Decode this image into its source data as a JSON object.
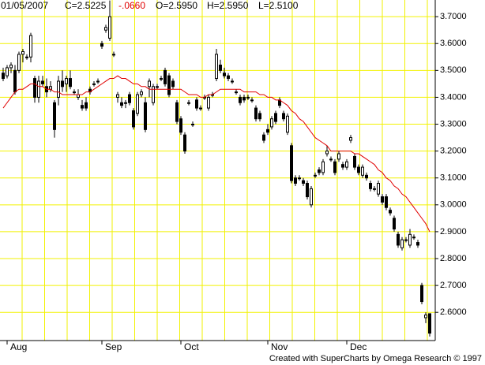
{
  "chart_data": {
    "type": "candlestick",
    "header": {
      "date": "01/05/2007",
      "close": "C=2.5225",
      "change": "-.0660",
      "open": "O=2.5950",
      "high": "H=2.5950",
      "low": "L=2.5100"
    },
    "footer": "Created with SuperCharts by Omega Research © 1997",
    "categories": [
      null,
      "Aug",
      null,
      null,
      null,
      null,
      null,
      null,
      null,
      null,
      null,
      null,
      null,
      null,
      null,
      null,
      null,
      null,
      null,
      null,
      null,
      null,
      null,
      null,
      null,
      "Sep",
      null,
      null,
      null,
      null,
      null,
      null,
      null,
      null,
      null,
      null,
      null,
      null,
      null,
      null,
      null,
      null,
      null,
      null,
      null,
      "Oct",
      null,
      null,
      null,
      null,
      null,
      null,
      null,
      null,
      null,
      null,
      null,
      null,
      null,
      null,
      null,
      null,
      null,
      null,
      null,
      null,
      null,
      "Nov",
      null,
      null,
      null,
      null,
      null,
      null,
      null,
      null,
      null,
      null,
      null,
      null,
      null,
      null,
      null,
      null,
      null,
      null,
      null,
      "Dec",
      null,
      null,
      null,
      null,
      null,
      null,
      null,
      null,
      null,
      null,
      null,
      null,
      null,
      null,
      null,
      null,
      null,
      null,
      null,
      null,
      null
    ],
    "open": [
      3.49,
      3.48,
      3.51,
      3.5,
      3.5,
      3.56,
      3.55,
      3.55,
      3.47,
      3.4,
      3.46,
      3.44,
      3.43,
      3.38,
      3.4,
      3.46,
      3.45,
      3.47,
      3.42,
      3.4,
      3.37,
      3.38,
      3.43,
      3.45,
      3.46,
      3.6,
      3.65,
      3.62,
      3.56,
      3.4,
      3.38,
      3.38,
      3.41,
      3.35,
      3.34,
      3.41,
      3.38,
      3.44,
      3.38,
      3.44,
      3.47,
      3.5,
      3.48,
      3.46,
      3.38,
      3.32,
      3.26,
      3.38,
      3.3,
      3.39,
      3.36,
      3.4,
      3.36,
      3.41,
      3.47,
      3.52,
      3.49,
      3.48,
      3.46,
      3.42,
      3.4,
      3.4,
      3.4,
      3.39,
      3.36,
      3.34,
      3.26,
      3.28,
      3.29,
      3.34,
      3.39,
      3.34,
      3.27,
      3.22,
      3.1,
      3.1,
      3.09,
      3.08,
      3.0,
      3.11,
      3.13,
      3.12,
      3.19,
      3.17,
      3.16,
      3.17,
      3.15,
      3.14,
      3.24,
      3.18,
      3.14,
      3.11,
      3.11,
      3.08,
      3.06,
      3.04,
      3.03,
      3.03,
      2.98,
      2.95,
      2.89,
      2.84,
      2.87,
      2.85,
      2.88,
      2.86,
      2.7,
      2.58,
      2.595
    ],
    "high": [
      3.51,
      3.52,
      3.53,
      3.52,
      3.57,
      3.58,
      3.56,
      3.64,
      3.48,
      3.48,
      3.48,
      3.47,
      3.46,
      3.39,
      3.48,
      3.5,
      3.48,
      3.5,
      3.43,
      3.43,
      3.39,
      3.4,
      3.44,
      3.46,
      3.47,
      3.61,
      3.67,
      3.76,
      3.57,
      3.42,
      3.4,
      3.39,
      3.42,
      3.36,
      3.42,
      3.43,
      3.4,
      3.47,
      3.45,
      3.45,
      3.48,
      3.51,
      3.49,
      3.47,
      3.39,
      3.33,
      3.27,
      3.39,
      3.31,
      3.4,
      3.37,
      3.41,
      3.41,
      3.42,
      3.58,
      3.54,
      3.51,
      3.49,
      3.47,
      3.43,
      3.41,
      3.41,
      3.41,
      3.4,
      3.37,
      3.35,
      3.27,
      3.3,
      3.33,
      3.35,
      3.4,
      3.35,
      3.34,
      3.23,
      3.11,
      3.11,
      3.1,
      3.09,
      3.07,
      3.12,
      3.14,
      3.17,
      3.22,
      3.18,
      3.17,
      3.2,
      3.16,
      3.17,
      3.26,
      3.19,
      3.15,
      3.15,
      3.12,
      3.09,
      3.07,
      3.09,
      3.04,
      3.04,
      2.99,
      2.96,
      2.9,
      2.88,
      2.88,
      2.91,
      2.89,
      2.87,
      2.71,
      2.6,
      2.595
    ],
    "low": [
      3.46,
      3.47,
      3.49,
      3.41,
      3.49,
      3.53,
      3.54,
      3.53,
      3.38,
      3.38,
      3.44,
      3.4,
      3.42,
      3.25,
      3.37,
      3.42,
      3.42,
      3.43,
      3.41,
      3.39,
      3.35,
      3.35,
      3.41,
      3.44,
      3.45,
      3.58,
      3.64,
      3.61,
      3.55,
      3.38,
      3.36,
      3.36,
      3.37,
      3.28,
      3.33,
      3.4,
      3.27,
      3.4,
      3.37,
      3.43,
      3.46,
      3.44,
      3.4,
      3.43,
      3.3,
      3.26,
      3.19,
      3.37,
      3.29,
      3.35,
      3.35,
      3.39,
      3.35,
      3.4,
      3.46,
      3.49,
      3.47,
      3.46,
      3.45,
      3.41,
      3.37,
      3.38,
      3.39,
      3.38,
      3.31,
      3.31,
      3.23,
      3.26,
      3.28,
      3.3,
      3.36,
      3.31,
      3.26,
      3.08,
      3.07,
      3.09,
      3.07,
      3.02,
      2.99,
      3.1,
      3.11,
      3.11,
      3.18,
      3.16,
      3.11,
      3.16,
      3.13,
      3.13,
      3.23,
      3.13,
      3.11,
      3.1,
      3.09,
      3.05,
      3.05,
      3.03,
      3.0,
      2.98,
      2.96,
      2.9,
      2.84,
      2.83,
      2.86,
      2.84,
      2.87,
      2.84,
      2.63,
      2.56,
      2.51
    ],
    "close": [
      3.47,
      3.51,
      3.52,
      3.42,
      3.56,
      3.57,
      3.55,
      3.63,
      3.4,
      3.46,
      3.45,
      3.42,
      3.44,
      3.28,
      3.46,
      3.44,
      3.47,
      3.44,
      3.42,
      3.41,
      3.36,
      3.36,
      3.42,
      3.45,
      3.46,
      3.59,
      3.66,
      3.7,
      3.56,
      3.41,
      3.37,
      3.38,
      3.38,
      3.29,
      3.41,
      3.42,
      3.28,
      3.46,
      3.44,
      3.44,
      3.47,
      3.45,
      3.41,
      3.44,
      3.31,
      3.27,
      3.2,
      3.38,
      3.3,
      3.36,
      3.36,
      3.4,
      3.4,
      3.41,
      3.56,
      3.5,
      3.48,
      3.47,
      3.46,
      3.42,
      3.38,
      3.39,
      3.4,
      3.39,
      3.32,
      3.32,
      3.24,
      3.27,
      3.32,
      3.31,
      3.37,
      3.32,
      3.33,
      3.09,
      3.08,
      3.1,
      3.08,
      3.03,
      3.06,
      3.11,
      3.12,
      3.16,
      3.2,
      3.17,
      3.12,
      3.19,
      3.14,
      3.16,
      3.25,
      3.14,
      3.12,
      3.14,
      3.1,
      3.06,
      3.06,
      3.08,
      3.01,
      2.99,
      2.97,
      2.91,
      2.85,
      2.87,
      2.87,
      2.89,
      2.88,
      2.85,
      2.64,
      2.59,
      2.5225
    ],
    "moving_average": {
      "color": "#e00000",
      "values": [
        3.36,
        3.38,
        3.4,
        3.42,
        3.43,
        3.43,
        3.44,
        3.45,
        3.45,
        3.44,
        3.44,
        3.43,
        3.43,
        3.42,
        3.42,
        3.41,
        3.41,
        3.41,
        3.41,
        3.41,
        3.41,
        3.42,
        3.42,
        3.43,
        3.44,
        3.45,
        3.46,
        3.47,
        3.47,
        3.48,
        3.47,
        3.47,
        3.46,
        3.45,
        3.45,
        3.44,
        3.44,
        3.43,
        3.43,
        3.43,
        3.43,
        3.43,
        3.43,
        3.43,
        3.43,
        3.43,
        3.42,
        3.41,
        3.41,
        3.41,
        3.4,
        3.4,
        3.41,
        3.41,
        3.42,
        3.43,
        3.43,
        3.43,
        3.43,
        3.43,
        3.43,
        3.42,
        3.42,
        3.42,
        3.42,
        3.41,
        3.41,
        3.4,
        3.4,
        3.39,
        3.39,
        3.38,
        3.37,
        3.35,
        3.34,
        3.32,
        3.31,
        3.29,
        3.27,
        3.25,
        3.24,
        3.23,
        3.22,
        3.2,
        3.2,
        3.2,
        3.2,
        3.2,
        3.2,
        3.19,
        3.19,
        3.18,
        3.17,
        3.16,
        3.15,
        3.13,
        3.12,
        3.1,
        3.09,
        3.07,
        3.06,
        3.04,
        3.03,
        3.01,
        2.99,
        2.97,
        2.95,
        2.93,
        2.9
      ]
    },
    "candle_color": "#000000",
    "grid_color": "#f2f200",
    "grid": true,
    "ylim": [
      2.495,
      3.762
    ],
    "yticks": [
      {
        "value": 2.6,
        "label": "2.6000"
      },
      {
        "value": 2.7,
        "label": "2.7000"
      },
      {
        "value": 2.8,
        "label": "2.8000"
      },
      {
        "value": 2.9,
        "label": "2.9000"
      },
      {
        "value": 3.0,
        "label": "3.0000"
      },
      {
        "value": 3.1,
        "label": "3.1000"
      },
      {
        "value": 3.2,
        "label": "3.2000"
      },
      {
        "value": 3.3,
        "label": "3.3000"
      },
      {
        "value": 3.4,
        "label": "3.4000"
      },
      {
        "value": 3.5,
        "label": "3.5000"
      },
      {
        "value": 3.6,
        "label": "3.6000"
      },
      {
        "value": 3.7,
        "label": "3.7000"
      }
    ]
  }
}
